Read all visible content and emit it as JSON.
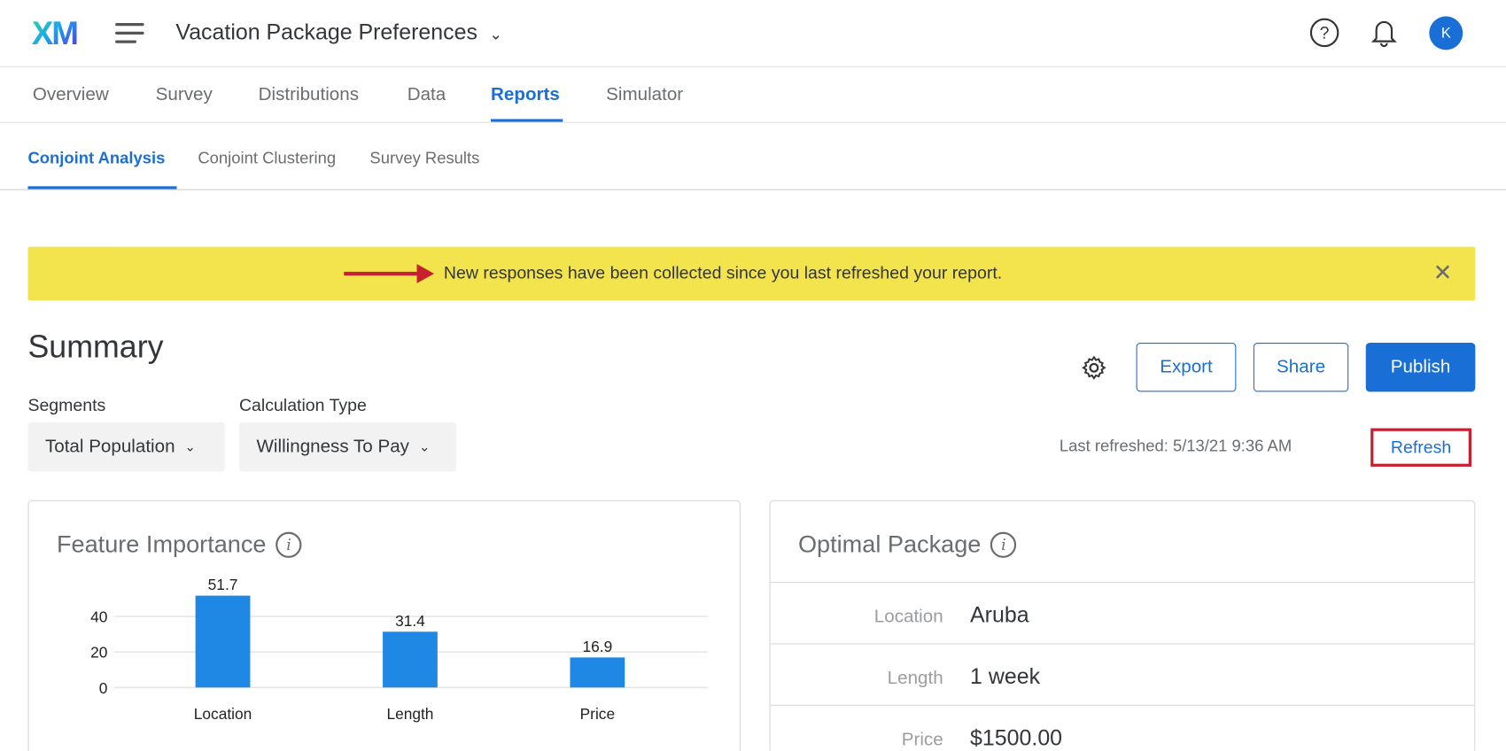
{
  "header": {
    "logo": "XM",
    "project_title": "Vacation Package Preferences",
    "avatar_initial": "K"
  },
  "nav": {
    "tabs": [
      {
        "label": "Overview"
      },
      {
        "label": "Survey"
      },
      {
        "label": "Distributions"
      },
      {
        "label": "Data"
      },
      {
        "label": "Reports",
        "active": true
      },
      {
        "label": "Simulator"
      }
    ]
  },
  "subnav": {
    "tabs": [
      {
        "label": "Conjoint Analysis",
        "active": true
      },
      {
        "label": "Conjoint Clustering"
      },
      {
        "label": "Survey Results"
      }
    ]
  },
  "banner": {
    "message": "New responses have been collected since you last refreshed your report.",
    "color": "#f3e44e"
  },
  "summary": {
    "title": "Summary",
    "export_label": "Export",
    "share_label": "Share",
    "publish_label": "Publish",
    "segments_label": "Segments",
    "segments_value": "Total Population",
    "calc_label": "Calculation Type",
    "calc_value": "Willingness To Pay",
    "last_refreshed": "Last refreshed: 5/13/21 9:36 AM",
    "refresh_label": "Refresh"
  },
  "feature_importance": {
    "title": "Feature Importance"
  },
  "chart_data": {
    "type": "bar",
    "categories": [
      "Location",
      "Length",
      "Price"
    ],
    "values": [
      51.7,
      31.4,
      16.9
    ],
    "yticks": [
      0,
      20,
      40
    ],
    "ylim": [
      0,
      52
    ],
    "grid": true,
    "color": "#1f88e5"
  },
  "optimal_package": {
    "title": "Optimal Package",
    "rows": [
      {
        "label": "Location",
        "value": "Aruba"
      },
      {
        "label": "Length",
        "value": "1 week"
      },
      {
        "label": "Price",
        "value": "$1500.00"
      }
    ]
  },
  "colors": {
    "accent": "#1a6fd6",
    "highlight": "#c8202f"
  }
}
